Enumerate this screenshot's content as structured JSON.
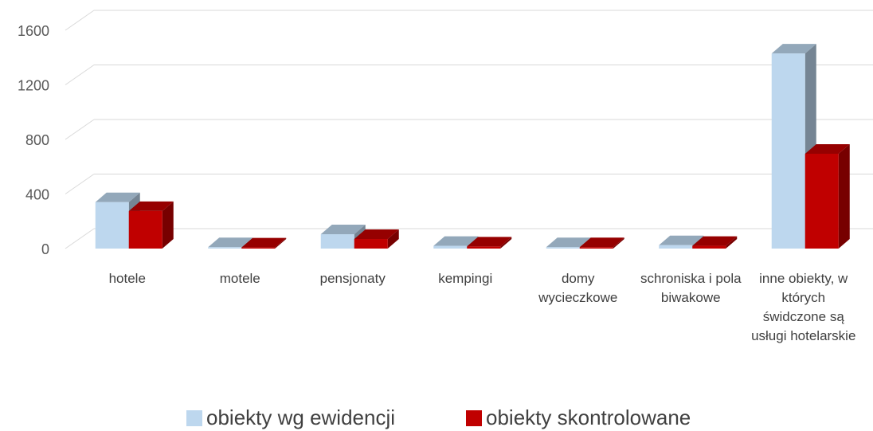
{
  "chart_data": {
    "type": "bar3d",
    "categories": [
      "hotele",
      "motele",
      "pensjonaty",
      "kempingi",
      "domy wycieczkowe",
      "schroniska i pola biwakowe",
      "inne obiekty, w których świdczone są usługi hotelarskie"
    ],
    "series": [
      {
        "name": "obiekty wg ewidencji",
        "color": "#bdd7ee",
        "values": [
          340,
          10,
          105,
          20,
          10,
          25,
          1430
        ]
      },
      {
        "name": "obiekty skontrolowane",
        "color": "#c00000",
        "values": [
          275,
          8,
          70,
          15,
          10,
          20,
          695
        ]
      }
    ],
    "ylim": [
      0,
      1600
    ],
    "yticks": [
      0,
      400,
      800,
      1200,
      1600
    ],
    "grid": true,
    "legend": "bottom"
  }
}
